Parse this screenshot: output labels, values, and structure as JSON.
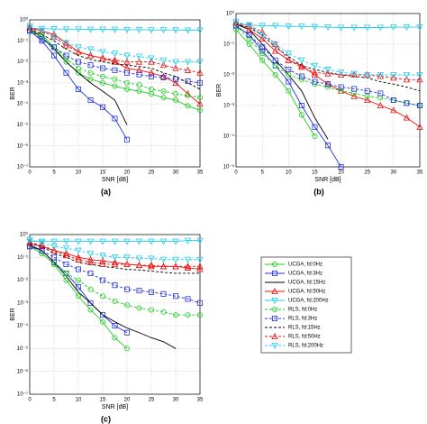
{
  "chart_data": [
    {
      "type": "line",
      "label": "(a)",
      "xlabel": "SNR [dB]",
      "ylabel": "BER",
      "log_y": true,
      "grid": true,
      "x": [
        0,
        2.5,
        5,
        7.5,
        10,
        12.5,
        15,
        17.5,
        20,
        22.5,
        25,
        27.5,
        30,
        32.5,
        35
      ],
      "xlim": [
        0,
        35
      ],
      "xticks": [
        0,
        5,
        10,
        15,
        20,
        25,
        30,
        35
      ],
      "ylim": [
        1e-07,
        1
      ],
      "yticks": [
        {
          "value": 1,
          "label": "10⁰"
        },
        {
          "value": 0.1,
          "label": "10⁻¹"
        },
        {
          "value": 0.01,
          "label": "10⁻²"
        },
        {
          "value": 0.001,
          "label": "10⁻³"
        },
        {
          "value": 0.0001,
          "label": "10⁻⁴"
        },
        {
          "value": 1e-05,
          "label": "10⁻⁵"
        },
        {
          "value": 1e-06,
          "label": "10⁻⁶"
        },
        {
          "value": 1e-07,
          "label": "10⁻⁷"
        }
      ],
      "series": [
        {
          "name": "UCGA, fd:0Hz",
          "color": "#22cc22",
          "dash": false,
          "marker": "circle",
          "values": [
            0.3,
            0.2,
            0.05,
            0.01,
            0.003,
            0.0015,
            0.001,
            0.0007,
            0.0005,
            0.0004,
            0.0003,
            0.0002,
            0.00015,
            8e-05,
            5e-05
          ]
        },
        {
          "name": "UCGA, fd:3Hz",
          "color": "#2233dd",
          "dash": false,
          "marker": "square",
          "values": [
            0.3,
            0.1,
            0.02,
            0.003,
            0.0005,
            0.00015,
            7e-05,
            2e-05,
            2e-06,
            null,
            null,
            null,
            null,
            null,
            null
          ]
        },
        {
          "name": "UCGA, fd:15Hz",
          "color": "#000000",
          "dash": false,
          "marker": "none",
          "values": [
            0.35,
            0.15,
            0.04,
            0.01,
            0.003,
            0.001,
            0.0004,
            0.00015,
            1e-05,
            null,
            null,
            null,
            null,
            null,
            null
          ]
        },
        {
          "name": "UCGA, fd:50Hz",
          "color": "#ee1111",
          "dash": false,
          "marker": "triangle-up",
          "values": [
            0.4,
            0.3,
            0.2,
            0.08,
            0.03,
            0.02,
            0.015,
            0.01,
            0.005,
            0.004,
            0.003,
            0.002,
            0.001,
            0.0003,
            0.0001
          ]
        },
        {
          "name": "UCGA, fd:200Hz",
          "color": "#22ccee",
          "dash": false,
          "marker": "triangle-down",
          "values": [
            0.4,
            0.38,
            0.37,
            0.36,
            0.36,
            0.35,
            0.35,
            0.35,
            0.34,
            0.34,
            0.33,
            0.33,
            0.33,
            0.32,
            0.32
          ]
        },
        {
          "name": "RLS, fd:0Hz",
          "color": "#22cc22",
          "dash": true,
          "marker": "circle",
          "values": [
            0.3,
            0.15,
            0.05,
            0.015,
            0.005,
            0.003,
            0.002,
            0.0015,
            0.001,
            0.0008,
            0.0005,
            0.0004,
            0.0003,
            0.00025,
            0.0002
          ]
        },
        {
          "name": "RLS, fd:3Hz",
          "color": "#2233dd",
          "dash": true,
          "marker": "square",
          "values": [
            0.3,
            0.12,
            0.05,
            0.02,
            0.01,
            0.007,
            0.005,
            0.004,
            0.003,
            0.0025,
            0.002,
            0.0018,
            0.0015,
            0.0012,
            0.001
          ]
        },
        {
          "name": "RLS, fd:15Hz",
          "color": "#000000",
          "dash": true,
          "marker": "none",
          "values": [
            0.4,
            0.2,
            0.1,
            0.04,
            0.02,
            0.013,
            0.01,
            0.008,
            0.007,
            0.006,
            0.005,
            0.003,
            0.002,
            0.001,
            0.0005
          ]
        },
        {
          "name": "RLS, fd:50Hz",
          "color": "#ee1111",
          "dash": true,
          "marker": "triangle-up",
          "values": [
            0.45,
            0.3,
            0.15,
            0.06,
            0.03,
            0.02,
            0.015,
            0.012,
            0.01,
            0.01,
            0.01,
            0.007,
            0.005,
            0.004,
            0.003
          ]
        },
        {
          "name": "RLS, fd:200Hz",
          "color": "#22ccee",
          "dash": true,
          "marker": "triangle-down",
          "values": [
            0.5,
            0.3,
            0.15,
            0.08,
            0.05,
            0.04,
            0.03,
            0.025,
            0.02,
            0.018,
            0.015,
            0.012,
            0.01,
            0.01,
            0.01
          ]
        }
      ]
    },
    {
      "type": "line",
      "label": "(b)",
      "xlabel": "SNR [dB]",
      "ylabel": "BER",
      "log_y": true,
      "grid": true,
      "x": [
        0,
        2.5,
        5,
        7.5,
        10,
        12.5,
        15,
        17.5,
        20,
        22.5,
        25,
        27.5,
        30,
        32.5,
        35
      ],
      "xlim": [
        0,
        35
      ],
      "xticks": [
        0,
        5,
        10,
        15,
        20,
        25,
        30,
        35
      ],
      "ylim": [
        1e-05,
        1
      ],
      "yticks": [
        {
          "value": 1,
          "label": "10⁰"
        },
        {
          "value": 0.1,
          "label": "10⁻¹"
        },
        {
          "value": 0.01,
          "label": "10⁻²"
        },
        {
          "value": 0.001,
          "label": "10⁻³"
        },
        {
          "value": 0.0001,
          "label": "10⁻⁴"
        },
        {
          "value": 1e-05,
          "label": "10⁻⁵"
        }
      ],
      "series": [
        {
          "name": "UCGA, fd:0Hz",
          "color": "#22cc22",
          "dash": false,
          "marker": "circle",
          "values": [
            0.3,
            0.1,
            0.03,
            0.01,
            0.003,
            0.0005,
            0.0001,
            null,
            null,
            null,
            null,
            null,
            null,
            null,
            null
          ]
        },
        {
          "name": "UCGA, fd:3Hz",
          "color": "#2233dd",
          "dash": false,
          "marker": "square",
          "values": [
            0.4,
            0.2,
            0.06,
            0.02,
            0.006,
            0.001,
            0.0002,
            5e-05,
            1e-05,
            null,
            null,
            null,
            null,
            null,
            null
          ]
        },
        {
          "name": "UCGA, fd:15Hz",
          "color": "#000000",
          "dash": false,
          "marker": "none",
          "values": [
            0.45,
            0.3,
            0.1,
            0.03,
            0.01,
            0.003,
            0.0004,
            8e-05,
            null,
            null,
            null,
            null,
            null,
            null,
            null
          ]
        },
        {
          "name": "UCGA, fd:50Hz",
          "color": "#ee1111",
          "dash": false,
          "marker": "triangle-up",
          "values": [
            0.5,
            0.3,
            0.15,
            0.06,
            0.03,
            0.02,
            0.01,
            0.005,
            0.003,
            0.002,
            0.0015,
            0.001,
            0.0007,
            0.0004,
            0.0002
          ]
        },
        {
          "name": "UCGA, fd:200Hz",
          "color": "#22ccee",
          "dash": false,
          "marker": "triangle-down",
          "values": [
            0.45,
            0.42,
            0.4,
            0.4,
            0.38,
            0.38,
            0.37,
            0.36,
            0.35,
            0.35,
            0.35,
            0.35,
            0.36,
            0.36,
            0.36
          ]
        },
        {
          "name": "RLS, fd:0Hz",
          "color": "#22cc22",
          "dash": true,
          "marker": "circle",
          "values": [
            0.4,
            0.15,
            0.05,
            0.02,
            0.01,
            0.007,
            0.005,
            0.004,
            0.003,
            0.0025,
            0.002,
            0.0018,
            0.0015,
            0.0012,
            0.001
          ]
        },
        {
          "name": "RLS, fd:3Hz",
          "color": "#2233dd",
          "dash": true,
          "marker": "square",
          "values": [
            0.4,
            0.2,
            0.08,
            0.03,
            0.015,
            0.009,
            0.006,
            0.005,
            0.004,
            0.0035,
            0.003,
            0.0025,
            0.0015,
            0.0012,
            0.001
          ]
        },
        {
          "name": "RLS, fd:15Hz",
          "color": "#000000",
          "dash": true,
          "marker": "none",
          "values": [
            0.45,
            0.35,
            0.2,
            0.08,
            0.04,
            0.02,
            0.015,
            0.012,
            0.01,
            0.009,
            0.008,
            0.006,
            0.005,
            0.004,
            0.003
          ]
        },
        {
          "name": "RLS, fd:50Hz",
          "color": "#ee1111",
          "dash": true,
          "marker": "triangle-up",
          "values": [
            0.5,
            0.4,
            0.25,
            0.1,
            0.03,
            0.018,
            0.012,
            0.011,
            0.01,
            0.01,
            0.01,
            0.009,
            0.008,
            0.007,
            0.007
          ]
        },
        {
          "name": "RLS, fd:200Hz",
          "color": "#22ccee",
          "dash": true,
          "marker": "triangle-down",
          "values": [
            0.55,
            0.4,
            0.2,
            0.1,
            0.05,
            0.03,
            0.02,
            0.015,
            0.012,
            0.011,
            0.01,
            0.01,
            0.01,
            0.01,
            0.01
          ]
        }
      ]
    },
    {
      "type": "line",
      "label": "(c)",
      "xlabel": "SNR [dB]",
      "ylabel": "BER",
      "log_y": true,
      "grid": true,
      "x": [
        0,
        2.5,
        5,
        7.5,
        10,
        12.5,
        15,
        17.5,
        20,
        22.5,
        25,
        27.5,
        30,
        32.5,
        35
      ],
      "xlim": [
        0,
        35
      ],
      "xticks": [
        0,
        5,
        10,
        15,
        20,
        25,
        30,
        35
      ],
      "ylim": [
        1e-07,
        1
      ],
      "yticks": [
        {
          "value": 1,
          "label": "10⁰"
        },
        {
          "value": 0.1,
          "label": "10⁻¹"
        },
        {
          "value": 0.01,
          "label": "10⁻²"
        },
        {
          "value": 0.001,
          "label": "10⁻³"
        },
        {
          "value": 0.0001,
          "label": "10⁻⁴"
        },
        {
          "value": 1e-05,
          "label": "10⁻⁵"
        },
        {
          "value": 1e-06,
          "label": "10⁻⁶"
        },
        {
          "value": 1e-07,
          "label": "10⁻⁷"
        }
      ],
      "series": [
        {
          "name": "UCGA, fd:0Hz",
          "color": "#22cc22",
          "dash": false,
          "marker": "circle",
          "values": [
            0.3,
            0.15,
            0.05,
            0.01,
            0.002,
            0.0005,
            0.00015,
            3e-05,
            1e-05,
            null,
            null,
            null,
            null,
            null,
            null
          ]
        },
        {
          "name": "UCGA, fd:3Hz",
          "color": "#2233dd",
          "dash": false,
          "marker": "square",
          "values": [
            0.3,
            0.2,
            0.06,
            0.02,
            0.005,
            0.001,
            0.0003,
            0.0001,
            5e-05,
            null,
            null,
            null,
            null,
            null,
            null
          ]
        },
        {
          "name": "UCGA, fd:15Hz",
          "color": "#000000",
          "dash": false,
          "marker": "none",
          "values": [
            0.35,
            0.2,
            0.06,
            0.015,
            0.003,
            0.001,
            0.0003,
            0.00015,
            8e-05,
            5e-05,
            3e-05,
            2e-05,
            1e-05,
            null,
            null
          ]
        },
        {
          "name": "UCGA, fd:50Hz",
          "color": "#ee1111",
          "dash": false,
          "marker": "triangle-up",
          "values": [
            0.4,
            0.3,
            0.2,
            0.15,
            0.1,
            0.08,
            0.07,
            0.06,
            0.05,
            0.045,
            0.04,
            0.04,
            0.04,
            0.035,
            0.03
          ]
        },
        {
          "name": "UCGA, fd:200Hz",
          "color": "#22ccee",
          "dash": false,
          "marker": "triangle-down",
          "values": [
            0.5,
            0.5,
            0.5,
            0.5,
            0.5,
            0.5,
            0.5,
            0.5,
            0.5,
            0.5,
            0.5,
            0.5,
            0.5,
            0.55,
            0.55
          ]
        },
        {
          "name": "RLS, fd:0Hz",
          "color": "#22cc22",
          "dash": true,
          "marker": "circle",
          "values": [
            0.3,
            0.15,
            0.05,
            0.02,
            0.01,
            0.004,
            0.002,
            0.0012,
            0.0008,
            0.0006,
            0.0005,
            0.0004,
            0.0003,
            0.0003,
            0.0003
          ]
        },
        {
          "name": "RLS, fd:3Hz",
          "color": "#2233dd",
          "dash": true,
          "marker": "square",
          "values": [
            0.3,
            0.2,
            0.1,
            0.05,
            0.03,
            0.02,
            0.01,
            0.006,
            0.004,
            0.0035,
            0.003,
            0.0025,
            0.002,
            0.0015,
            0.001
          ]
        },
        {
          "name": "RLS, fd:15Hz",
          "color": "#000000",
          "dash": true,
          "marker": "none",
          "values": [
            0.4,
            0.3,
            0.15,
            0.1,
            0.06,
            0.05,
            0.04,
            0.035,
            0.03,
            0.028,
            0.025,
            0.022,
            0.02,
            0.02,
            0.02
          ]
        },
        {
          "name": "RLS, fd:50Hz",
          "color": "#ee1111",
          "dash": true,
          "marker": "triangle-up",
          "values": [
            0.45,
            0.35,
            0.2,
            0.12,
            0.08,
            0.06,
            0.05,
            0.05,
            0.05,
            0.045,
            0.045,
            0.04,
            0.04,
            0.04,
            0.04
          ]
        },
        {
          "name": "RLS, fd:200Hz",
          "color": "#22ccee",
          "dash": true,
          "marker": "triangle-down",
          "values": [
            0.6,
            0.45,
            0.3,
            0.25,
            0.2,
            0.15,
            0.12,
            0.1,
            0.1,
            0.09,
            0.09,
            0.08,
            0.08,
            0.08,
            0.08
          ]
        }
      ]
    }
  ]
}
